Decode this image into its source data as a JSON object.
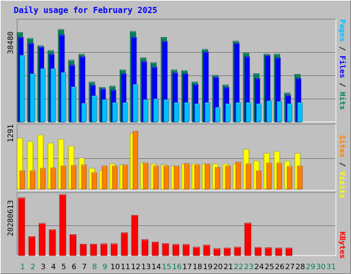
{
  "colors": {
    "background": "#c0c0c0",
    "title": "#0000ff",
    "hits": "#00805c",
    "files": "#0000ff",
    "pages": "#00c0ff",
    "visits": "#ffff00",
    "sites": "#ff8000",
    "kbytes": "#ff0000",
    "weekend_label": "#00805c",
    "weekday_label": "#000000",
    "future_label": "#00805c"
  },
  "chart_data": [
    {
      "type": "bar",
      "title": "Daily usage for February 2025",
      "ylabel_max": "38480",
      "ylim": [
        0,
        38480
      ],
      "legend": [
        {
          "key": "pages",
          "label": "Pages"
        },
        {
          "key": "sep1",
          "label": " / "
        },
        {
          "key": "files",
          "label": "Files"
        },
        {
          "key": "sep2",
          "label": " / "
        },
        {
          "key": "hits",
          "label": "Hits"
        }
      ],
      "series": [
        {
          "name": "Hits",
          "color_key": "hits",
          "values": [
            37000,
            34500,
            31500,
            29500,
            38200,
            25500,
            28000,
            16500,
            14300,
            14800,
            21500,
            37400,
            26500,
            24500,
            35000,
            21500,
            21200,
            16500,
            30000,
            19300,
            15300,
            33400,
            28500,
            20000,
            28000,
            28000,
            12000,
            19700
          ]
        },
        {
          "name": "Files",
          "color_key": "files",
          "values": [
            35000,
            32500,
            31000,
            28000,
            36000,
            23500,
            27000,
            15200,
            13700,
            13200,
            20000,
            35000,
            25000,
            22700,
            33300,
            20300,
            20000,
            15500,
            29000,
            18500,
            14300,
            32500,
            27000,
            18000,
            27500,
            26500,
            11000,
            18000
          ]
        },
        {
          "name": "Pages",
          "color_key": "pages",
          "values": [
            27500,
            19900,
            22000,
            22000,
            20400,
            14500,
            7700,
            10800,
            9200,
            8000,
            8000,
            15500,
            9200,
            9500,
            9200,
            8000,
            8000,
            7500,
            8000,
            6000,
            7500,
            8000,
            8000,
            7500,
            8700,
            8400,
            7500,
            8000
          ]
        }
      ]
    },
    {
      "type": "bar",
      "ylabel_max": "1291",
      "ylim": [
        0,
        1291
      ],
      "legend": [
        {
          "key": "sites",
          "label": "Sites"
        },
        {
          "key": "sep1",
          "label": " / "
        },
        {
          "key": "visits",
          "label": "Visits"
        }
      ],
      "series": [
        {
          "name": "Visits",
          "color_key": "visits",
          "values": [
            1050,
            980,
            1120,
            950,
            1030,
            890,
            640,
            430,
            380,
            520,
            500,
            1150,
            540,
            520,
            500,
            480,
            520,
            520,
            520,
            520,
            520,
            520,
            820,
            580,
            740,
            780,
            580,
            740
          ]
        },
        {
          "name": "Sites",
          "color_key": "sites",
          "values": [
            380,
            380,
            430,
            440,
            480,
            490,
            500,
            340,
            480,
            480,
            500,
            1200,
            540,
            480,
            480,
            480,
            530,
            500,
            520,
            450,
            480,
            560,
            520,
            380,
            540,
            540,
            470,
            480
          ]
        }
      ]
    },
    {
      "type": "bar",
      "ylabel_max": "20280613",
      "ylim": [
        0,
        20280613
      ],
      "legend": [
        {
          "key": "kbytes",
          "label": "KBytes"
        }
      ],
      "series": [
        {
          "name": "KBytes",
          "color_key": "kbytes",
          "values": [
            19200000,
            6300000,
            10700000,
            8600000,
            20280000,
            7000000,
            3800000,
            3800000,
            3900000,
            3900000,
            7600000,
            13400000,
            5300000,
            4500000,
            4000000,
            3700000,
            3700000,
            2800000,
            3500000,
            2300000,
            2500000,
            2800000,
            10800000,
            2700000,
            2600000,
            2500000,
            2500000,
            0
          ]
        }
      ]
    }
  ],
  "x_labels": [
    "1",
    "2",
    "3",
    "4",
    "5",
    "6",
    "7",
    "8",
    "9",
    "10",
    "11",
    "12",
    "13",
    "14",
    "15",
    "16",
    "17",
    "18",
    "19",
    "20",
    "21",
    "22",
    "23",
    "24",
    "25",
    "26",
    "27",
    "28",
    "29",
    "30",
    "31"
  ],
  "weekend_days": [
    1,
    2,
    8,
    9,
    15,
    16,
    22,
    23
  ],
  "future_days": [
    29,
    30,
    31
  ]
}
